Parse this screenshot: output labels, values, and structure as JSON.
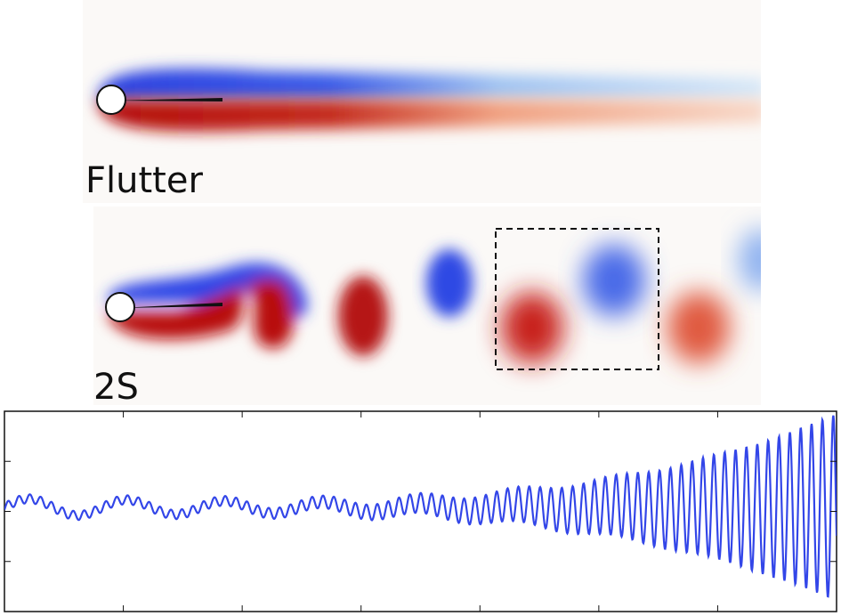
{
  "panels": [
    {
      "label": "Flutter"
    },
    {
      "label": "2S"
    }
  ]
}
